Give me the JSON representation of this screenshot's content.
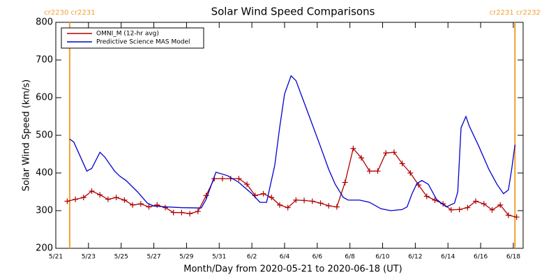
{
  "chart_data": {
    "type": "line",
    "title": "Solar Wind Speed Comparisons",
    "xlabel": "Month/Day from 2020-05-21 to 2020-06-18 (UT)",
    "ylabel": "Solar Wind Speed (km/s)",
    "xlim": [
      0,
      28.6
    ],
    "ylim": [
      200,
      800
    ],
    "xticks": [
      {
        "value": 0,
        "label": "5/21"
      },
      {
        "value": 2,
        "label": "5/23"
      },
      {
        "value": 4,
        "label": "5/25"
      },
      {
        "value": 6,
        "label": "5/27"
      },
      {
        "value": 8,
        "label": "5/29"
      },
      {
        "value": 10,
        "label": "5/31"
      },
      {
        "value": 12,
        "label": "6/2"
      },
      {
        "value": 14,
        "label": "6/4"
      },
      {
        "value": 16,
        "label": "6/6"
      },
      {
        "value": 18,
        "label": "6/8"
      },
      {
        "value": 20,
        "label": "6/10"
      },
      {
        "value": 22,
        "label": "6/12"
      },
      {
        "value": 24,
        "label": "6/14"
      },
      {
        "value": 26,
        "label": "6/16"
      },
      {
        "value": 28,
        "label": "6/18"
      }
    ],
    "yticks": [
      200,
      300,
      400,
      500,
      600,
      700,
      800
    ],
    "legend": "upper left",
    "annotations": [
      {
        "text": "cr2230 cr2231",
        "x": 0.85,
        "color": "#f0a030"
      },
      {
        "text": "cr2231 cr2232",
        "x": 28.1,
        "color": "#f0a030"
      }
    ],
    "series": [
      {
        "name": "OMNI_M (12-hr avg)",
        "color": "#b00000",
        "markers": true,
        "x": [
          0.7,
          1.2,
          1.7,
          2.2,
          2.7,
          3.2,
          3.7,
          4.2,
          4.7,
          5.2,
          5.7,
          6.2,
          6.7,
          7.2,
          7.7,
          8.2,
          8.7,
          9.2,
          9.7,
          10.2,
          10.7,
          11.2,
          11.7,
          12.2,
          12.7,
          13.2,
          13.7,
          14.2,
          14.7,
          15.2,
          15.7,
          16.2,
          16.7,
          17.2,
          17.7,
          18.2,
          18.7,
          19.2,
          19.7,
          20.2,
          20.7,
          21.2,
          21.7,
          22.2,
          22.7,
          23.2,
          23.7,
          24.2,
          24.7,
          25.2,
          25.7,
          26.2,
          26.7,
          27.2,
          27.7,
          28.2
        ],
        "values": [
          325,
          330,
          335,
          352,
          342,
          330,
          335,
          328,
          315,
          318,
          310,
          315,
          308,
          295,
          295,
          292,
          298,
          340,
          385,
          385,
          385,
          385,
          370,
          340,
          345,
          335,
          315,
          308,
          328,
          327,
          325,
          320,
          313,
          310,
          375,
          465,
          440,
          405,
          405,
          453,
          455,
          425,
          400,
          368,
          338,
          328,
          318,
          302,
          303,
          308,
          325,
          318,
          302,
          315,
          288,
          283
        ]
      },
      {
        "name": "Predictive Science MAS Model",
        "color": "#0000d0",
        "markers": false,
        "x": [
          0.85,
          1.1,
          1.9,
          2.2,
          2.7,
          3.0,
          3.6,
          3.9,
          4.3,
          5.0,
          5.6,
          6.0,
          6.8,
          7.7,
          8.9,
          9.2,
          9.8,
          10.5,
          11.2,
          12.0,
          12.5,
          12.9,
          13.4,
          13.7,
          14.0,
          14.4,
          14.7,
          15.0,
          15.6,
          16.2,
          16.7,
          17.1,
          17.6,
          17.9,
          18.6,
          19.2,
          19.9,
          20.5,
          21.2,
          21.5,
          21.8,
          22.1,
          22.4,
          22.8,
          23.3,
          23.9,
          24.4,
          24.6,
          24.8,
          25.1,
          25.3,
          25.9,
          26.5,
          27.0,
          27.4,
          27.7,
          27.9,
          28.1
        ],
        "values": [
          490,
          482,
          405,
          412,
          455,
          442,
          405,
          392,
          380,
          350,
          320,
          312,
          310,
          308,
          307,
          330,
          402,
          393,
          375,
          345,
          322,
          322,
          420,
          520,
          610,
          658,
          645,
          610,
          540,
          470,
          410,
          370,
          335,
          328,
          328,
          322,
          305,
          300,
          303,
          310,
          345,
          372,
          380,
          370,
          330,
          310,
          320,
          350,
          520,
          550,
          525,
          470,
          410,
          370,
          345,
          355,
          410,
          475
        ]
      }
    ]
  }
}
